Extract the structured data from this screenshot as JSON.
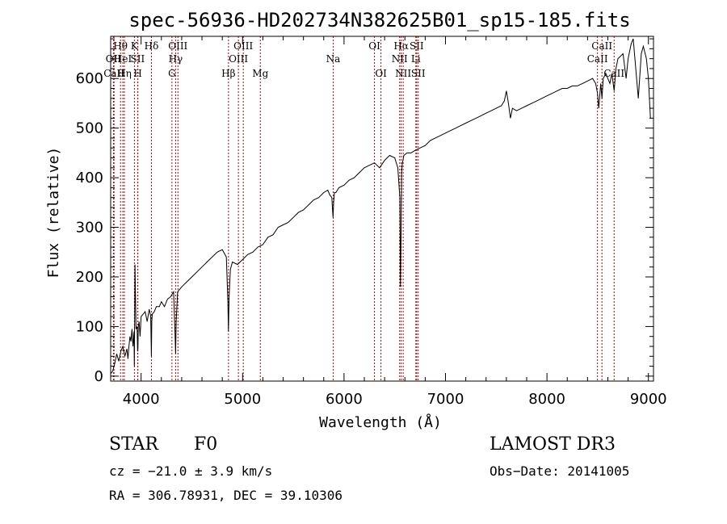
{
  "chart_data": {
    "type": "line",
    "title": "spec-56936-HD202734N382625B01_sp15-185.fits",
    "xlabel": "Wavelength (Å)",
    "ylabel": "Flux (relative)",
    "xlim": [
      3700,
      9050
    ],
    "ylim": [
      -10,
      685
    ],
    "xticks": [
      4000,
      5000,
      6000,
      7000,
      8000,
      9000
    ],
    "yticks": [
      0,
      100,
      200,
      300,
      400,
      500,
      600
    ],
    "series": [
      {
        "name": "Flux",
        "x": [
          3700,
          3720,
          3740,
          3760,
          3780,
          3800,
          3820,
          3840,
          3860,
          3870,
          3880,
          3890,
          3900,
          3910,
          3920,
          3930,
          3933,
          3936,
          3940,
          3950,
          3960,
          3966,
          3968,
          3972,
          3980,
          3990,
          4000,
          4020,
          4040,
          4060,
          4080,
          4095,
          4101,
          4105,
          4110,
          4130,
          4150,
          4180,
          4200,
          4230,
          4260,
          4290,
          4320,
          4334,
          4340,
          4346,
          4360,
          4400,
          4450,
          4500,
          4550,
          4600,
          4650,
          4700,
          4750,
          4800,
          4840,
          4855,
          4861,
          4867,
          4880,
          4900,
          4950,
          5000,
          5050,
          5100,
          5150,
          5200,
          5250,
          5300,
          5350,
          5400,
          5450,
          5500,
          5550,
          5600,
          5650,
          5700,
          5750,
          5800,
          5840,
          5860,
          5880,
          5885,
          5892,
          5897,
          5905,
          5920,
          5950,
          6000,
          6050,
          6100,
          6150,
          6200,
          6250,
          6300,
          6350,
          6400,
          6450,
          6500,
          6530,
          6550,
          6556,
          6562,
          6568,
          6575,
          6590,
          6620,
          6660,
          6700,
          6750,
          6800,
          6850,
          6900,
          6950,
          7000,
          7050,
          7100,
          7150,
          7200,
          7250,
          7300,
          7350,
          7400,
          7450,
          7500,
          7550,
          7580,
          7600,
          7620,
          7640,
          7660,
          7700,
          7750,
          7800,
          7850,
          7900,
          7950,
          8000,
          8050,
          8100,
          8150,
          8200,
          8250,
          8300,
          8350,
          8400,
          8450,
          8480,
          8498,
          8510,
          8530,
          8542,
          8555,
          8580,
          8620,
          8640,
          8662,
          8680,
          8700,
          8750,
          8780,
          8800,
          8830,
          8850,
          8900,
          8930,
          8950,
          8980,
          9000,
          9020
        ],
        "y": [
          5,
          10,
          25,
          45,
          30,
          50,
          60,
          40,
          55,
          35,
          60,
          80,
          70,
          95,
          60,
          90,
          20,
          85,
          225,
          95,
          100,
          50,
          55,
          100,
          110,
          80,
          120,
          125,
          130,
          110,
          135,
          120,
          40,
          110,
          125,
          130,
          140,
          140,
          150,
          140,
          155,
          160,
          170,
          90,
          45,
          110,
          170,
          180,
          190,
          200,
          210,
          220,
          230,
          240,
          250,
          255,
          240,
          150,
          90,
          160,
          215,
          230,
          225,
          235,
          245,
          250,
          260,
          265,
          280,
          285,
          300,
          305,
          310,
          320,
          330,
          335,
          345,
          355,
          360,
          370,
          375,
          365,
          360,
          340,
          320,
          350,
          370,
          370,
          380,
          385,
          395,
          400,
          410,
          420,
          425,
          430,
          420,
          435,
          445,
          440,
          420,
          360,
          180,
          290,
          410,
          430,
          445,
          450,
          450,
          455,
          460,
          465,
          475,
          480,
          485,
          490,
          495,
          500,
          505,
          510,
          515,
          520,
          525,
          530,
          535,
          540,
          545,
          555,
          575,
          550,
          520,
          540,
          535,
          540,
          545,
          550,
          555,
          560,
          565,
          570,
          575,
          580,
          580,
          585,
          585,
          590,
          595,
          600,
          590,
          570,
          540,
          590,
          560,
          600,
          610,
          590,
          610,
          575,
          620,
          640,
          650,
          600,
          640,
          670,
          680,
          560,
          650,
          665,
          640,
          600,
          520
        ]
      }
    ],
    "spectral_lines": [
      {
        "label": "Hθ",
        "x": 3797,
        "row": 0
      },
      {
        "label": "OII",
        "x": 3727,
        "row": 1
      },
      {
        "label": "CaII",
        "x": 3733,
        "row": 2
      },
      {
        "label": "HeI",
        "x": 3820,
        "row": 1
      },
      {
        "label": "Hη",
        "x": 3835,
        "row": 2
      },
      {
        "label": "K",
        "x": 3934,
        "row": 0
      },
      {
        "label": "SII",
        "x": 3966,
        "row": 1
      },
      {
        "label": "H",
        "x": 3968,
        "row": 2
      },
      {
        "label": "Hδ",
        "x": 4102,
        "row": 0
      },
      {
        "label": "OIII",
        "x": 4363,
        "row": 0
      },
      {
        "label": "Hγ",
        "x": 4340,
        "row": 1
      },
      {
        "label": "G",
        "x": 4304,
        "row": 2
      },
      {
        "label": "Hβ",
        "x": 4861,
        "row": 2
      },
      {
        "label": "OIII",
        "x": 5007,
        "row": 0
      },
      {
        "label": "OIII",
        "x": 4959,
        "row": 1
      },
      {
        "label": "Mg",
        "x": 5175,
        "row": 2
      },
      {
        "label": "Na",
        "x": 5893,
        "row": 1
      },
      {
        "label": "OI",
        "x": 6300,
        "row": 0
      },
      {
        "label": "OI",
        "x": 6364,
        "row": 2
      },
      {
        "label": "Hα",
        "x": 6563,
        "row": 0
      },
      {
        "label": "NII",
        "x": 6548,
        "row": 1
      },
      {
        "label": "NII",
        "x": 6583,
        "row": 2
      },
      {
        "label": "SII",
        "x": 6716,
        "row": 0
      },
      {
        "label": "Li",
        "x": 6708,
        "row": 1
      },
      {
        "label": "SII",
        "x": 6731,
        "row": 2
      },
      {
        "label": "CaII",
        "x": 8542,
        "row": 0
      },
      {
        "label": "CaII",
        "x": 8498,
        "row": 1
      },
      {
        "label": "CaII",
        "x": 8662,
        "row": 2
      }
    ]
  },
  "info": {
    "object_type": "STAR",
    "subclass": "F0",
    "survey": "LAMOST DR3",
    "redshift_line": "cz = −21.0 ± 3.9 km/s",
    "obs_date_line": "Obs−Date: 20141005",
    "coords_line": "RA = 306.78931, DEC =  39.10306"
  },
  "colors": {
    "spectrum": "#000000",
    "line_markers": "#b40000",
    "background": "#ffffff"
  }
}
